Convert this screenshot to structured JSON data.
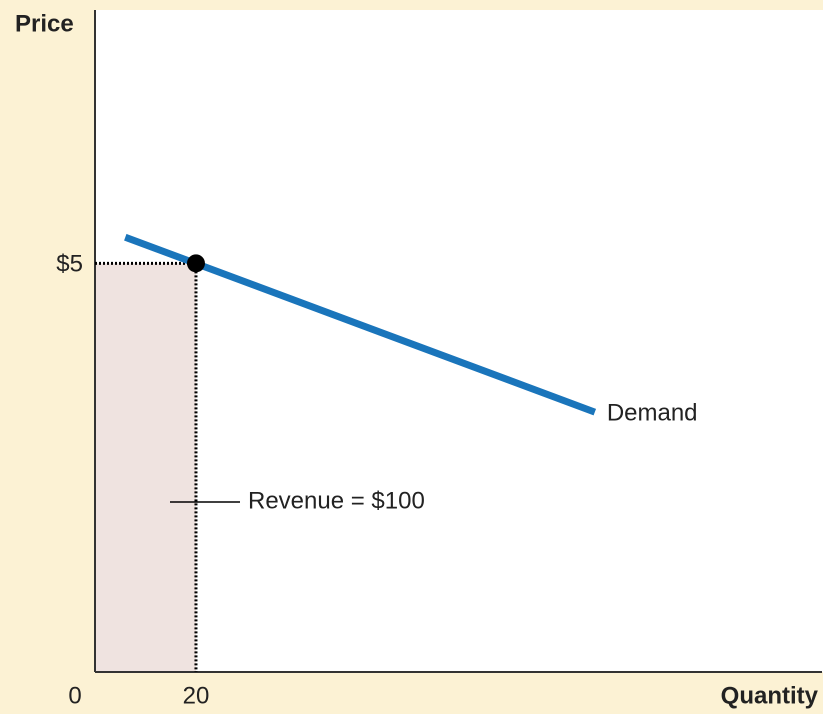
{
  "chart_data": {
    "type": "line",
    "xlabel": "Quantity",
    "ylabel": "Price",
    "xlim": [
      0,
      144
    ],
    "ylim": [
      0,
      8.1
    ],
    "xticks": [
      0,
      20
    ],
    "yticks": [
      {
        "value": 5,
        "label": "$5"
      }
    ],
    "series": [
      {
        "name": "Demand",
        "color": "#1a75bb",
        "x": [
          6,
          99
        ],
        "values": [
          5.32,
          3.18
        ]
      }
    ],
    "point": {
      "x": 20,
      "y": 5
    },
    "revenue_area_color": "#efe3e0",
    "annotation": "Revenue = $100"
  }
}
